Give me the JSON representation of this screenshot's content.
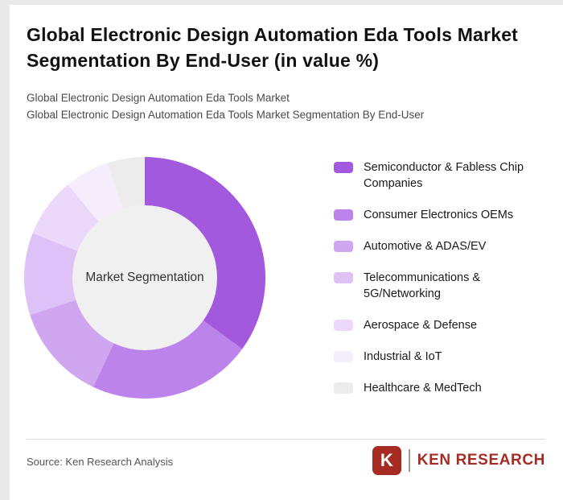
{
  "header": {
    "title": "Global Electronic Design Automation Eda Tools Market Segmentation By End-User (in value %)",
    "subtitle1": "Global Electronic Design Automation Eda Tools Market",
    "subtitle2": "Global Electronic Design Automation Eda Tools Market Segmentation By End-User"
  },
  "chart_data": {
    "type": "pie",
    "donut": true,
    "center_label": "Market Segmentation",
    "legend_position": "right",
    "categories": [
      "Semiconductor & Fabless Chip Companies",
      "Consumer Electronics OEMs",
      "Automotive & ADAS/EV",
      "Telecommunications & 5G/Networking",
      "Aerospace & Defense",
      "Industrial & IoT",
      "Healthcare & MedTech"
    ],
    "values": [
      35,
      22,
      13,
      11,
      8,
      6,
      5
    ],
    "colors": [
      "#A259DD",
      "#BC83EA",
      "#D0A6F1",
      "#DEC1F6",
      "#EBD8FA",
      "#F5EDFC",
      "#ECECEC"
    ],
    "hole_color": "#f0f0f0"
  },
  "footer": {
    "source": "Source: Ken Research Analysis",
    "logo_monogram": "K",
    "logo_text": "KEN RESEARCH",
    "logo_color": "#A62B23"
  }
}
